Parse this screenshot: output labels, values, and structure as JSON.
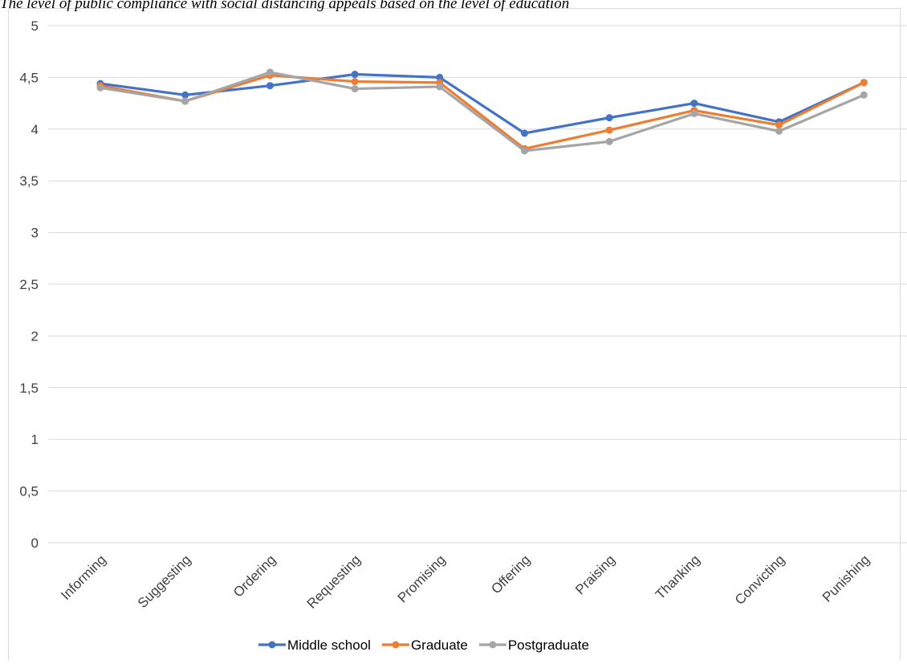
{
  "chart_data": {
    "type": "line",
    "title": "The level of public compliance with social distancing appeals based on the level of education",
    "xlabel": "",
    "ylabel": "",
    "ylim": [
      0,
      5
    ],
    "y_ticks": [
      "0",
      "0,5",
      "1",
      "1,5",
      "2",
      "2,5",
      "3",
      "3,5",
      "4",
      "4,5",
      "5"
    ],
    "grid": true,
    "legend_position": "bottom",
    "categories": [
      "Informing",
      "Suggesting",
      "Ordering",
      "Requesting",
      "Promising",
      "Offering",
      "Praising",
      "Thanking",
      "Convicting",
      "Punishing"
    ],
    "series": [
      {
        "name": "Middle school",
        "color": "#4472c4",
        "values": [
          4.44,
          4.33,
          4.42,
          4.53,
          4.5,
          3.96,
          4.11,
          4.25,
          4.07,
          4.45
        ]
      },
      {
        "name": "Graduate",
        "color": "#ed7d31",
        "values": [
          4.42,
          4.27,
          4.52,
          4.46,
          4.45,
          3.81,
          3.99,
          4.18,
          4.04,
          4.45
        ]
      },
      {
        "name": "Postgraduate",
        "color": "#a5a5a5",
        "values": [
          4.4,
          4.27,
          4.55,
          4.39,
          4.41,
          3.79,
          3.88,
          4.15,
          3.98,
          4.33
        ]
      }
    ]
  }
}
